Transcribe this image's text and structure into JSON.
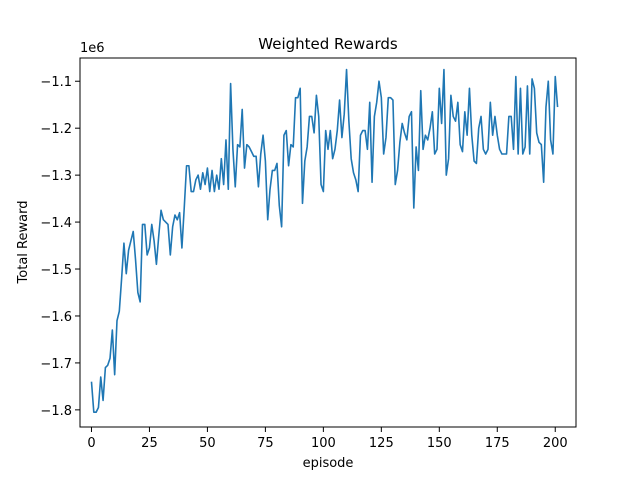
{
  "chart_data": {
    "type": "line",
    "title": "Weighted Rewards",
    "xlabel": "episode",
    "ylabel": "Total Reward",
    "y_offset_text": "1e6",
    "xlim": [
      -4.95,
      208.95
    ],
    "ylim": [
      -1.8365,
      -1.0505
    ],
    "x_ticks": [
      0,
      25,
      50,
      75,
      100,
      125,
      150,
      175,
      200
    ],
    "x_tick_labels": [
      "0",
      "25",
      "50",
      "75",
      "100",
      "125",
      "150",
      "175",
      "200"
    ],
    "y_ticks": [
      -1.8,
      -1.7,
      -1.6,
      -1.5,
      -1.4,
      -1.3,
      -1.2,
      -1.1
    ],
    "y_tick_labels": [
      "−1.8",
      "−1.7",
      "−1.6",
      "−1.5",
      "−1.4",
      "−1.3",
      "−1.2",
      "−1.1"
    ],
    "grid": false,
    "legend": "none",
    "series": [
      {
        "color": "#1f77b4",
        "x_start": 0,
        "x_step": 1,
        "values": [
          -1.74,
          -1.805,
          -1.805,
          -1.795,
          -1.73,
          -1.78,
          -1.71,
          -1.705,
          -1.69,
          -1.63,
          -1.725,
          -1.61,
          -1.59,
          -1.52,
          -1.445,
          -1.51,
          -1.46,
          -1.44,
          -1.42,
          -1.48,
          -1.55,
          -1.57,
          -1.405,
          -1.405,
          -1.47,
          -1.455,
          -1.405,
          -1.44,
          -1.49,
          -1.43,
          -1.375,
          -1.395,
          -1.4,
          -1.405,
          -1.47,
          -1.41,
          -1.385,
          -1.395,
          -1.38,
          -1.455,
          -1.37,
          -1.28,
          -1.28,
          -1.335,
          -1.335,
          -1.31,
          -1.3,
          -1.33,
          -1.295,
          -1.32,
          -1.285,
          -1.335,
          -1.29,
          -1.335,
          -1.3,
          -1.33,
          -1.265,
          -1.32,
          -1.225,
          -1.33,
          -1.105,
          -1.245,
          -1.325,
          -1.235,
          -1.24,
          -1.16,
          -1.285,
          -1.235,
          -1.24,
          -1.25,
          -1.26,
          -1.26,
          -1.325,
          -1.255,
          -1.215,
          -1.27,
          -1.395,
          -1.33,
          -1.29,
          -1.29,
          -1.275,
          -1.365,
          -1.41,
          -1.215,
          -1.205,
          -1.28,
          -1.235,
          -1.24,
          -1.135,
          -1.135,
          -1.115,
          -1.36,
          -1.27,
          -1.24,
          -1.175,
          -1.175,
          -1.21,
          -1.13,
          -1.175,
          -1.32,
          -1.335,
          -1.205,
          -1.245,
          -1.205,
          -1.265,
          -1.245,
          -1.205,
          -1.14,
          -1.22,
          -1.17,
          -1.075,
          -1.185,
          -1.265,
          -1.295,
          -1.31,
          -1.335,
          -1.215,
          -1.205,
          -1.205,
          -1.245,
          -1.145,
          -1.315,
          -1.175,
          -1.145,
          -1.1,
          -1.135,
          -1.255,
          -1.22,
          -1.135,
          -1.135,
          -1.14,
          -1.32,
          -1.29,
          -1.23,
          -1.19,
          -1.21,
          -1.225,
          -1.175,
          -1.165,
          -1.37,
          -1.24,
          -1.29,
          -1.12,
          -1.245,
          -1.215,
          -1.225,
          -1.2,
          -1.165,
          -1.255,
          -1.245,
          -1.115,
          -1.19,
          -1.075,
          -1.3,
          -1.265,
          -1.13,
          -1.175,
          -1.185,
          -1.145,
          -1.235,
          -1.25,
          -1.165,
          -1.215,
          -1.115,
          -1.215,
          -1.27,
          -1.275,
          -1.2,
          -1.175,
          -1.245,
          -1.255,
          -1.245,
          -1.145,
          -1.215,
          -1.175,
          -1.215,
          -1.245,
          -1.255,
          -1.255,
          -1.255,
          -1.175,
          -1.175,
          -1.245,
          -1.09,
          -1.255,
          -1.115,
          -1.255,
          -1.24,
          -1.11,
          -1.255,
          -1.095,
          -1.115,
          -1.21,
          -1.23,
          -1.235,
          -1.315,
          -1.155,
          -1.1,
          -1.225,
          -1.255,
          -1.09,
          -1.155
        ]
      }
    ]
  }
}
